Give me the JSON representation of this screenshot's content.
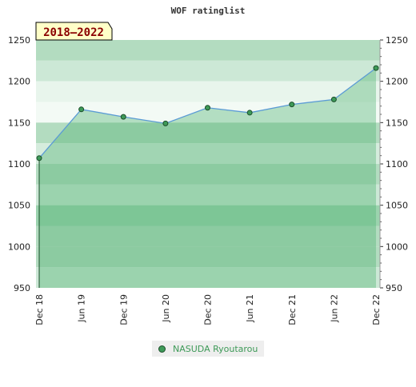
{
  "chart_data": {
    "type": "area",
    "title": "WOF ratinglist",
    "badge": "2018–2022",
    "x": [
      "Dec 18",
      "Jun 19",
      "Dec 19",
      "Jun 20",
      "Dec 20",
      "Jun 21",
      "Dec 21",
      "Jun 22",
      "Dec 22"
    ],
    "series": [
      {
        "name": "NASUDA Ryoutarou",
        "values": [
          1107,
          1166,
          1157,
          1149,
          1168,
          1162,
          1172,
          1178,
          1216
        ]
      }
    ],
    "ylim": [
      950,
      1250
    ],
    "yticks": [
      950,
      1000,
      1050,
      1100,
      1150,
      1200,
      1250
    ],
    "bands": [
      {
        "from": 1225,
        "to": 1250,
        "color": "#b3dcc0"
      },
      {
        "from": 1200,
        "to": 1225,
        "color": "#cce8d6"
      },
      {
        "from": 1175,
        "to": 1200,
        "color": "#e8f5ec"
      },
      {
        "from": 1150,
        "to": 1175,
        "color": "#f3faf5"
      },
      {
        "from": 1125,
        "to": 1150,
        "color": "#b3dcc0"
      },
      {
        "from": 1100,
        "to": 1125,
        "color": "#d5ecdd"
      },
      {
        "from": 1075,
        "to": 1100,
        "color": "#b3dcc0"
      },
      {
        "from": 1050,
        "to": 1075,
        "color": "#cce8d6"
      },
      {
        "from": 1025,
        "to": 1050,
        "color": "#9bd3ae"
      },
      {
        "from": 1000,
        "to": 1025,
        "color": "#b3dcc0"
      },
      {
        "from": 975,
        "to": 1000,
        "color": "#b3dcc0"
      },
      {
        "from": 950,
        "to": 975,
        "color": "#cce8d6"
      }
    ],
    "colors": {
      "line": "#5b9bd5",
      "fill": "#4caf6e",
      "marker": "#3e9a58",
      "marker_edge": "#1b4d2a",
      "badge_bg": "#ffffc8"
    },
    "grid": false,
    "legend_position": "bottom-center"
  }
}
